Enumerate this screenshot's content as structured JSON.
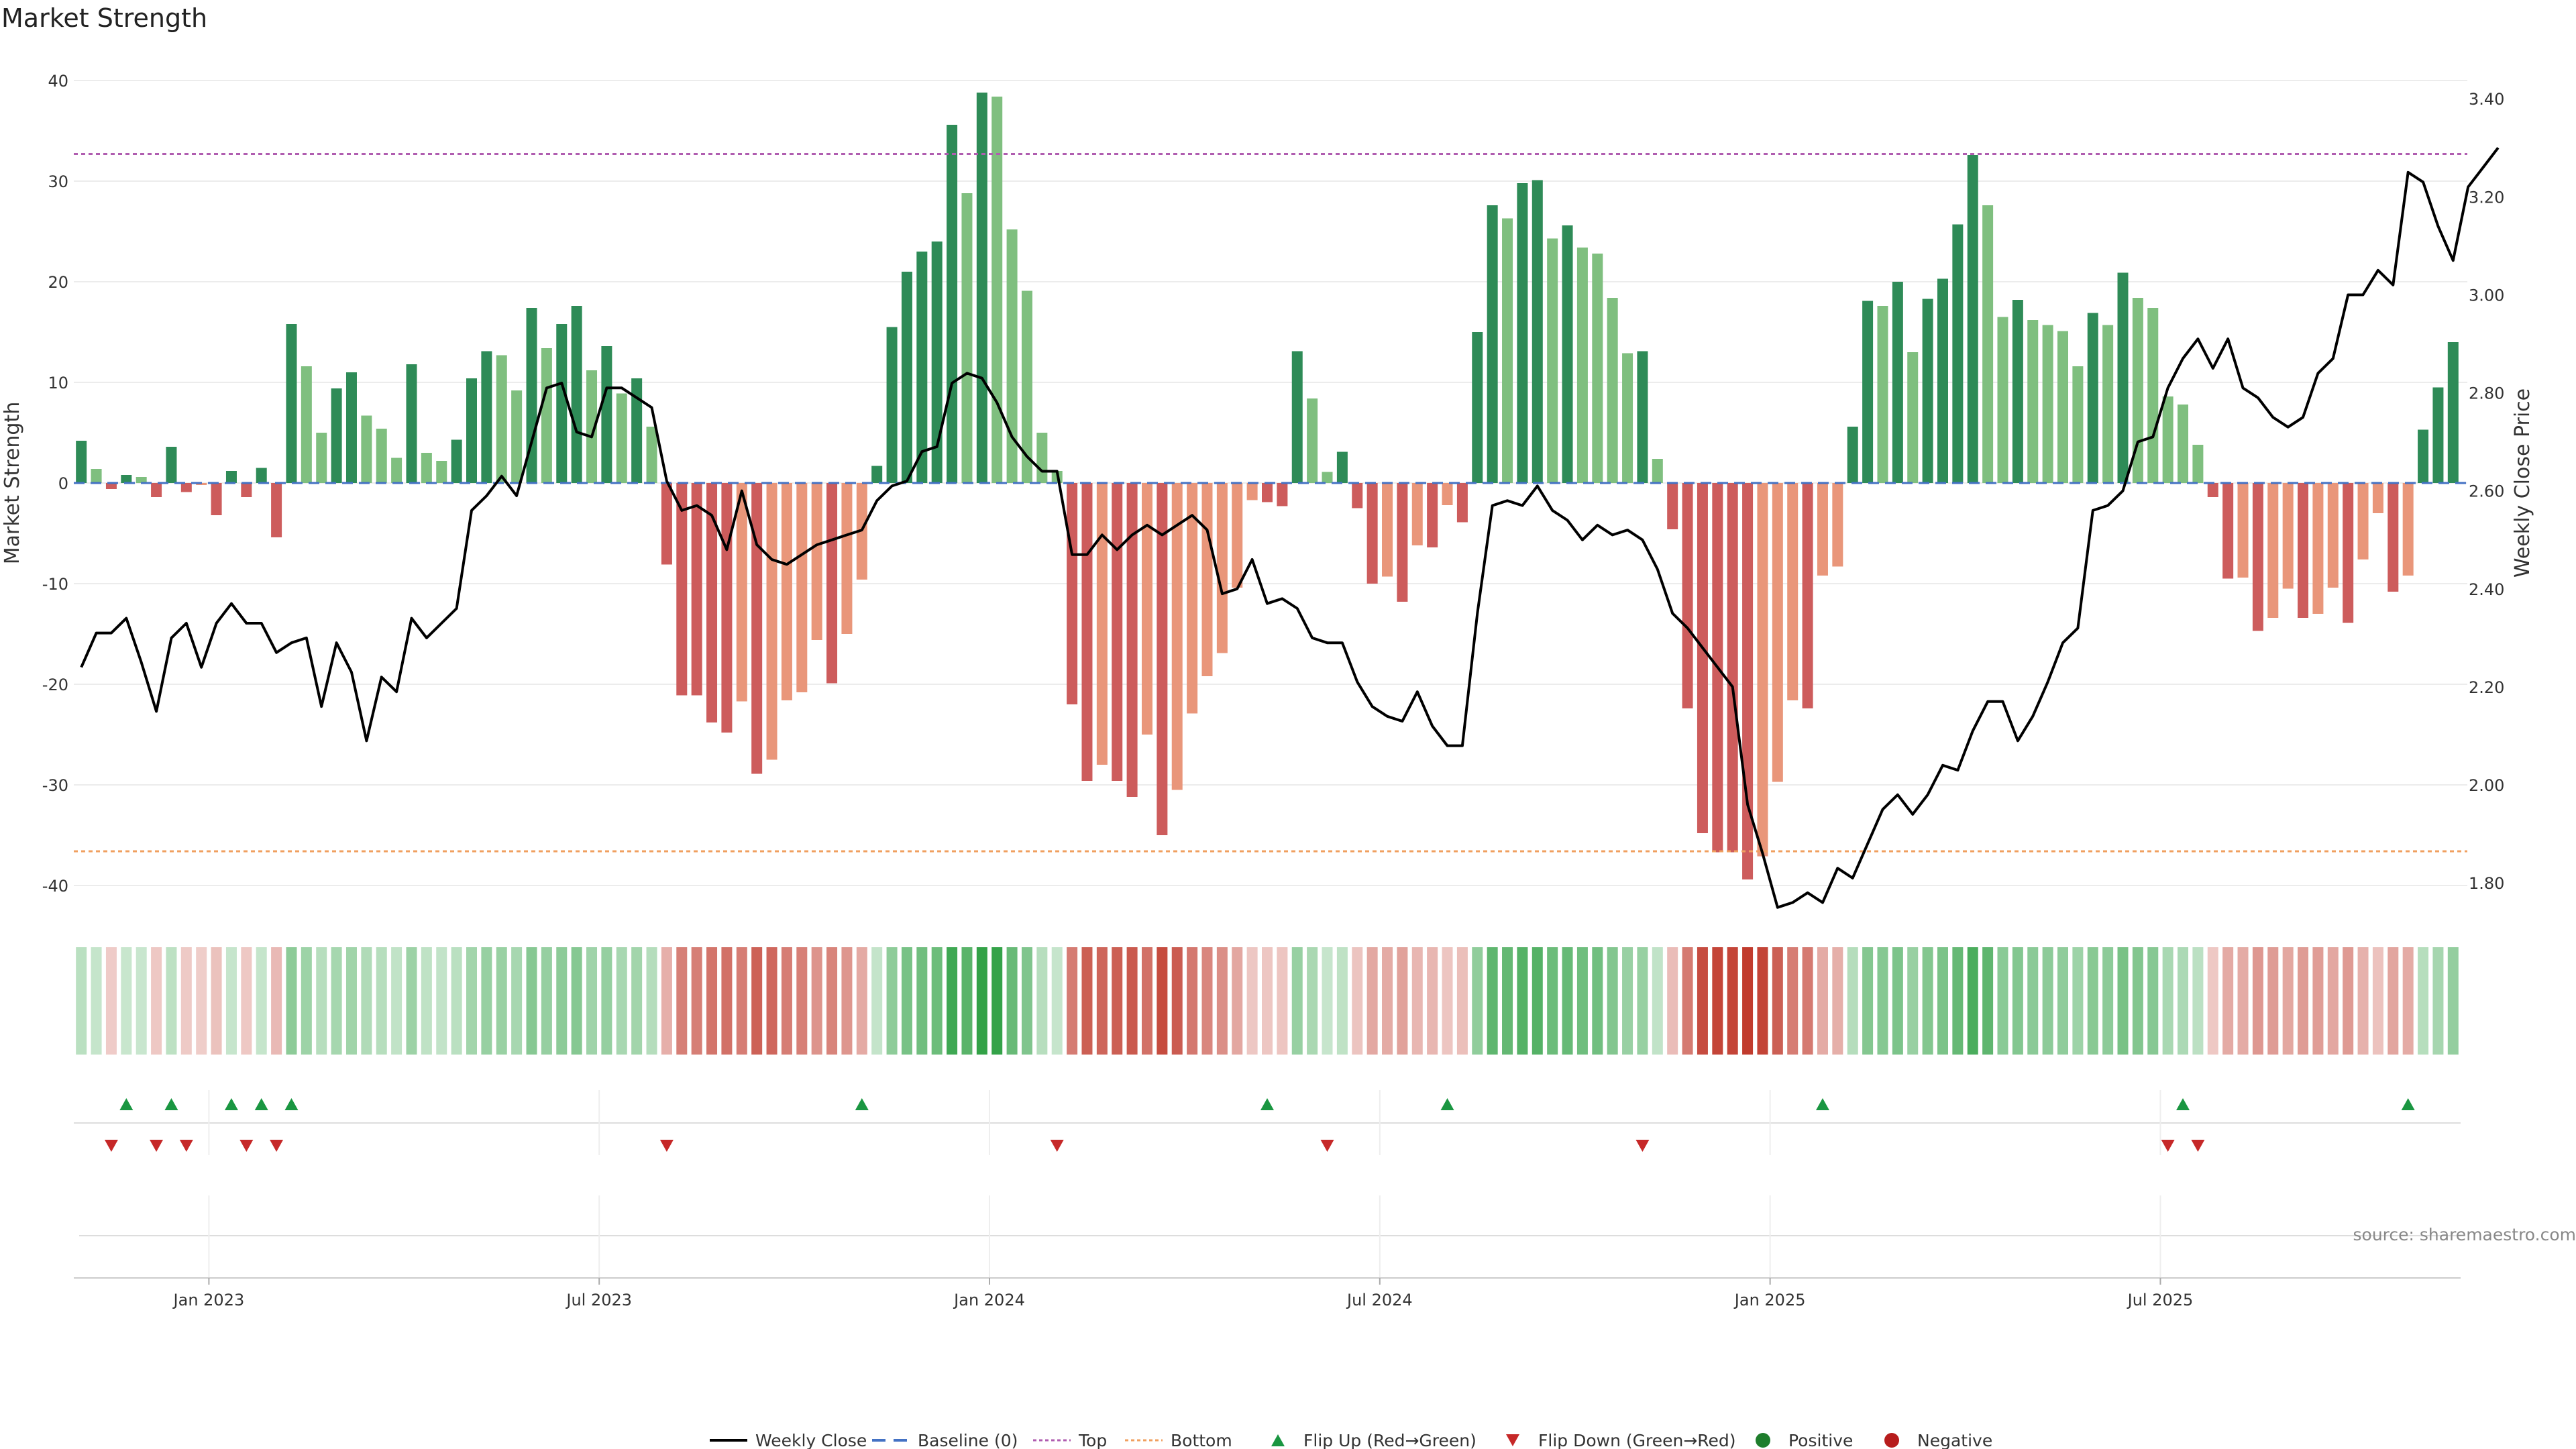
{
  "chart_data": {
    "type": "bar+line",
    "title": "Market Strength",
    "ylabel_left": "Market Strength",
    "ylabel_right": "Weekly Close Price",
    "ylim_left": [
      -43,
      43
    ],
    "ylim_right": [
      1.74,
      3.44
    ],
    "yticks_left": [
      "40",
      "30",
      "20",
      "10",
      "0",
      "-10",
      "-20",
      "-30",
      "-40"
    ],
    "yticks_right": [
      "3.40",
      "3.20",
      "3.00",
      "2.80",
      "2.60",
      "2.40",
      "2.20",
      "2.00",
      "1.80"
    ],
    "top_line": 32.7,
    "bottom_line": -36.6,
    "x_ticks": [
      "Jan 2023",
      "Jul 2023",
      "Jan 2024",
      "Jul 2024",
      "Jan 2025",
      "Jul 2025"
    ],
    "x_tick_weeks": [
      8.5,
      34.5,
      60.5,
      86.5,
      112.5,
      138.5
    ],
    "strength": [
      4.2,
      1.4,
      -0.6,
      0.8,
      0.6,
      -1.4,
      3.6,
      -0.9,
      -0.2,
      -3.2,
      1.2,
      -1.4,
      1.5,
      -5.4,
      15.8,
      11.6,
      5.0,
      9.4,
      11.0,
      6.7,
      5.4,
      2.5,
      11.8,
      3.0,
      2.2,
      4.3,
      10.4,
      13.1,
      12.7,
      9.2,
      17.4,
      13.4,
      15.8,
      17.6,
      11.2,
      13.6,
      8.9,
      10.4,
      5.6,
      -8.1,
      -21.1,
      -21.1,
      -23.8,
      -24.8,
      -21.7,
      -28.9,
      -27.5,
      -21.6,
      -20.8,
      -15.6,
      -19.9,
      -15.0,
      -9.6,
      1.7,
      15.5,
      21.0,
      23.0,
      24.0,
      35.6,
      28.8,
      38.8,
      38.4,
      25.2,
      19.1,
      5.0,
      1.2,
      -22.0,
      -29.6,
      -28.0,
      -29.6,
      -31.2,
      -25.0,
      -35.0,
      -30.5,
      -22.9,
      -19.2,
      -16.9,
      -10.4,
      -1.7,
      -1.9,
      -2.3,
      13.1,
      8.4,
      1.1,
      3.1,
      -2.5,
      -10.0,
      -9.3,
      -11.8,
      -6.2,
      -6.4,
      -2.2,
      -3.9,
      15.0,
      27.6,
      26.3,
      29.8,
      30.1,
      24.3,
      25.6,
      23.4,
      22.8,
      18.4,
      12.9,
      13.1,
      2.4,
      -4.6,
      -22.4,
      -34.8,
      -36.7,
      -36.7,
      -39.4,
      -37.1,
      -29.7,
      -21.6,
      -22.4,
      -9.2,
      -8.3,
      5.6,
      18.1,
      17.6,
      20.0,
      13.0,
      18.3,
      20.3,
      25.7,
      32.6,
      27.6,
      16.5,
      18.2,
      16.2,
      15.7,
      15.1,
      11.6,
      16.9,
      15.7,
      20.9,
      18.4,
      17.4,
      8.6,
      7.8,
      3.8,
      -1.4,
      -9.5,
      -9.4,
      -14.7,
      -13.4,
      -10.5,
      -13.4,
      -13.0,
      -10.4,
      -13.9,
      -7.6,
      -3.0,
      -10.8,
      -9.2,
      5.3,
      9.5,
      14.0
    ],
    "close": [
      2.24,
      2.31,
      2.31,
      2.34,
      2.25,
      2.15,
      2.3,
      2.33,
      2.24,
      2.33,
      2.37,
      2.33,
      2.33,
      2.27,
      2.29,
      2.3,
      2.16,
      2.29,
      2.23,
      2.09,
      2.22,
      2.19,
      2.34,
      2.3,
      2.33,
      2.36,
      2.56,
      2.59,
      2.63,
      2.59,
      2.7,
      2.81,
      2.82,
      2.72,
      2.71,
      2.81,
      2.81,
      2.79,
      2.77,
      2.62,
      2.56,
      2.57,
      2.55,
      2.48,
      2.6,
      2.49,
      2.46,
      2.45,
      2.47,
      2.49,
      2.5,
      2.51,
      2.52,
      2.58,
      2.61,
      2.62,
      2.68,
      2.69,
      2.82,
      2.84,
      2.83,
      2.78,
      2.71,
      2.67,
      2.64,
      2.64,
      2.47,
      2.47,
      2.51,
      2.48,
      2.51,
      2.53,
      2.51,
      2.53,
      2.55,
      2.52,
      2.39,
      2.4,
      2.46,
      2.37,
      2.38,
      2.36,
      2.3,
      2.29,
      2.29,
      2.21,
      2.16,
      2.14,
      2.13,
      2.19,
      2.12,
      2.08,
      2.08,
      2.35,
      2.57,
      2.58,
      2.57,
      2.61,
      2.56,
      2.54,
      2.5,
      2.53,
      2.51,
      2.52,
      2.5,
      2.44,
      2.35,
      2.32,
      2.28,
      2.24,
      2.2,
      1.96,
      1.86,
      1.75,
      1.76,
      1.78,
      1.76,
      1.83,
      1.81,
      1.88,
      1.95,
      1.98,
      1.94,
      1.98,
      2.04,
      2.03,
      2.11,
      2.17,
      2.17,
      2.09,
      2.14,
      2.21,
      2.29,
      2.32,
      2.56,
      2.57,
      2.6,
      2.7,
      2.71,
      2.81,
      2.87,
      2.91,
      2.85,
      2.91,
      2.81,
      2.79,
      2.75,
      2.73,
      2.75,
      2.84,
      2.87,
      3.0,
      3.0,
      3.05,
      3.02,
      3.25,
      3.23,
      3.14,
      3.07,
      3.22,
      3.26,
      3.3
    ],
    "heat_scale": "green (positive) / red (negative), intensity = magnitude",
    "flip_up_weeks": [
      3,
      6,
      10,
      12,
      14,
      52,
      79,
      91,
      116,
      140,
      155
    ],
    "flip_down_weeks": [
      2,
      5,
      7,
      11,
      13,
      39,
      65,
      83,
      104,
      139,
      141
    ],
    "legend": [
      "Weekly Close",
      "Baseline (0)",
      "Top",
      "Bottom",
      "Flip Up (Red→Green)",
      "Flip Down (Green→Red)",
      "Positive",
      "Negative"
    ],
    "source": "source: sharemaestro.com"
  },
  "colors": {
    "pos_strong": "#2e8b57",
    "pos_light": "#7fbf7f",
    "neg_strong": "#cd5c5c",
    "neg_light": "#e9967a",
    "line": "#000000",
    "baseline": "#4472c4",
    "top": "#b05db0",
    "bottom": "#f0a060",
    "flip_up": "#1a9641",
    "flip_down": "#c62828",
    "positive_dot": "#1e7d2c",
    "negative_dot": "#b71c1c"
  }
}
